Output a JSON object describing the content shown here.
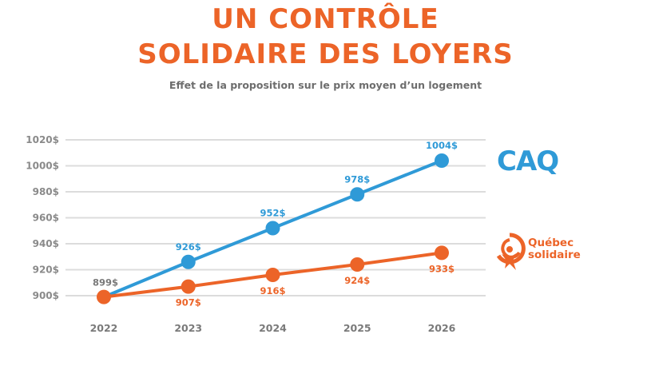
{
  "title_line1": "UN CONTRÔLE",
  "title_line2": "SOLIDAIRE DES LOYERS",
  "subtitle": "Effet de la proposition sur le prix moyen d’un logement",
  "legend": {
    "caq": {
      "label": "CAQ",
      "icon": "caq-logo-icon",
      "color": "#2f9ad7"
    },
    "qs": {
      "label_line1": "Québec",
      "label_line2": "solidaire",
      "icon": "quebec-solidaire-logo-icon",
      "color": "#ec6428"
    }
  },
  "chart_data": {
    "type": "line",
    "title": "UN CONTRÔLE SOLIDAIRE DES LOYERS",
    "subtitle": "Effet de la proposition sur le prix moyen d’un logement",
    "xlabel": "",
    "ylabel": "",
    "x": [
      "2022",
      "2023",
      "2024",
      "2025",
      "2026"
    ],
    "ylim": [
      900,
      1020
    ],
    "yticks": [
      900,
      920,
      940,
      960,
      980,
      1000,
      1020
    ],
    "ytick_labels": [
      "900$",
      "920$",
      "940$",
      "960$",
      "980$",
      "1000$",
      "1020$"
    ],
    "grid": true,
    "legend_position": "right",
    "series": [
      {
        "name": "CAQ",
        "color": "#2f9ad7",
        "values": [
          899,
          926,
          952,
          978,
          1004
        ],
        "labels": [
          "",
          "926$",
          "952$",
          "978$",
          "1004$"
        ],
        "label_position": "above"
      },
      {
        "name": "Québec solidaire",
        "color": "#ec6428",
        "values": [
          899,
          907,
          916,
          924,
          933
        ],
        "labels": [
          "899$",
          "907$",
          "916$",
          "924$",
          "933$"
        ],
        "label_position": "below"
      }
    ]
  }
}
